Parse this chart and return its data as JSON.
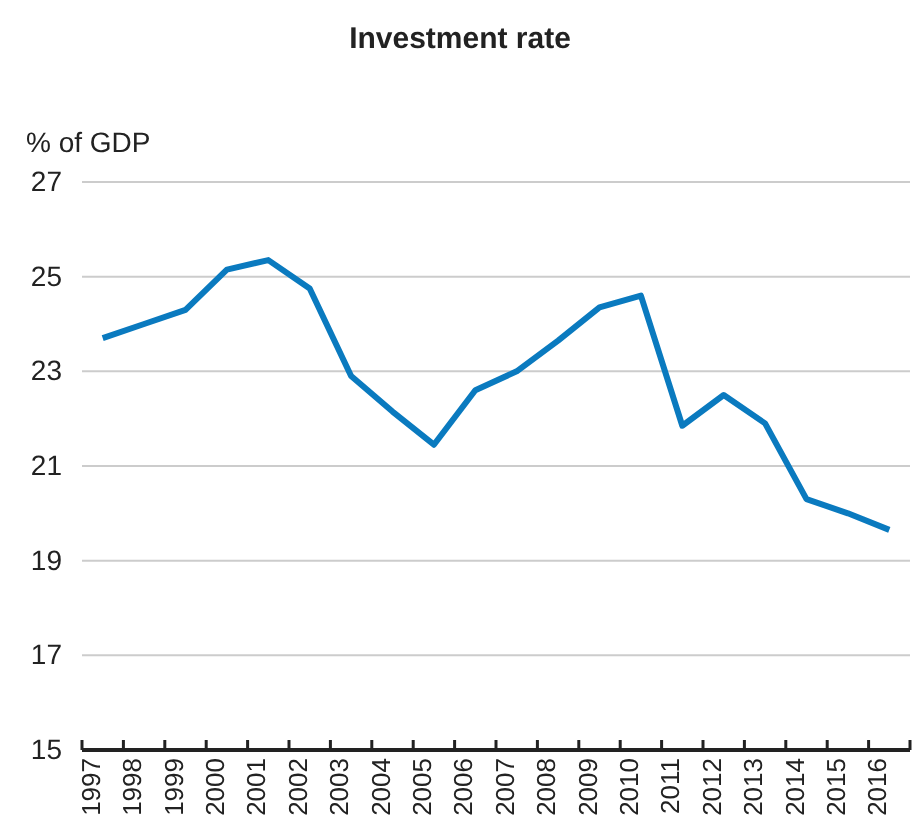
{
  "chart_data": {
    "type": "line",
    "title": "Investment rate",
    "ylabel": "% of GDP",
    "categories": [
      "1997",
      "1998",
      "1999",
      "2000",
      "2001",
      "2002",
      "2003",
      "2004",
      "2005",
      "2006",
      "2007",
      "2008",
      "2009",
      "2010",
      "2011",
      "2012",
      "2013",
      "2014",
      "2015",
      "2016"
    ],
    "series": [
      {
        "color": "#0a7abf",
        "values": [
          23.7,
          24.0,
          24.3,
          25.15,
          25.35,
          24.75,
          22.9,
          22.15,
          21.45,
          22.6,
          23.0,
          23.65,
          24.35,
          24.6,
          21.85,
          22.5,
          21.9,
          20.3,
          20.0,
          19.65
        ]
      }
    ],
    "ylim": [
      15,
      27
    ],
    "yticks": [
      15,
      17,
      19,
      21,
      23,
      25,
      27
    ],
    "grid": "y",
    "marker": "none",
    "line_style": "solid"
  }
}
